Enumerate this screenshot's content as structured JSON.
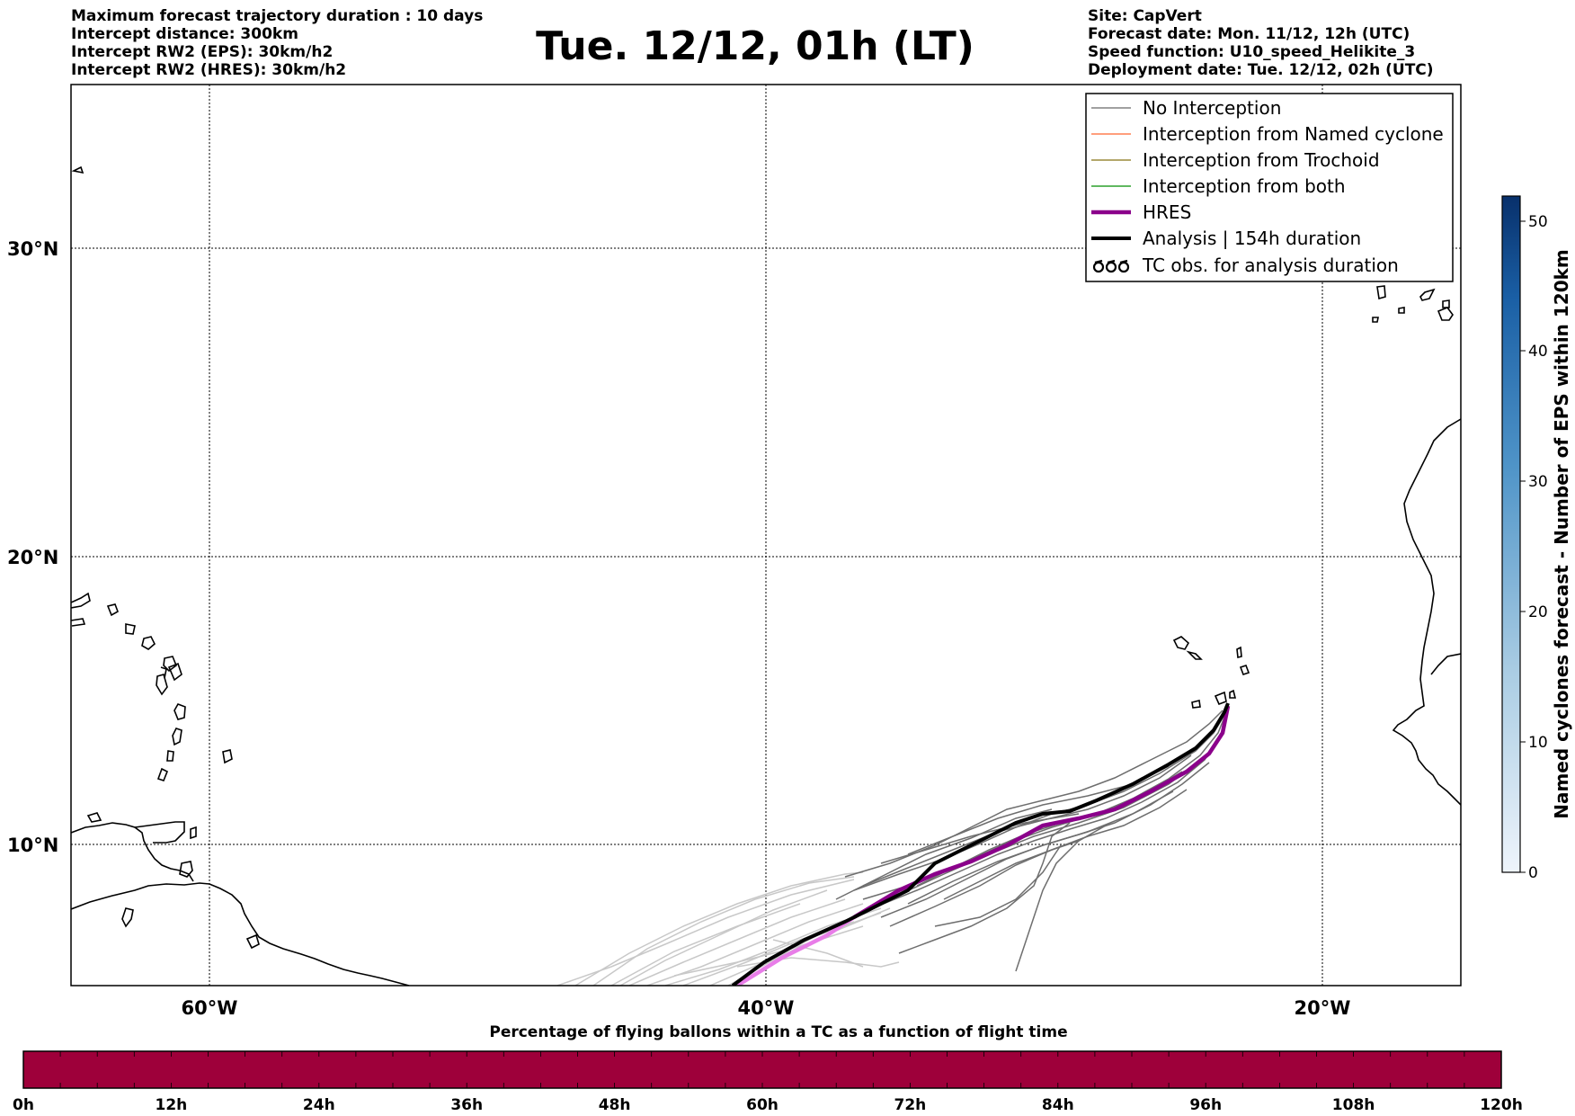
{
  "header_left": {
    "line1": "Maximum forecast trajectory duration : 10 days",
    "line2": "Intercept distance: 300km",
    "line3": "Intercept RW2 (EPS):  30km/h2",
    "line4": "Intercept RW2 (HRES): 30km/h2"
  },
  "title": "Tue. 12/12, 01h (LT)",
  "header_right": {
    "line1": "Site: CapVert",
    "line2": "Forecast date: Mon. 11/12, 12h (UTC)",
    "line3": "Speed function: U10_speed_Helikite_3",
    "line4": "Deployment date: Tue. 12/12, 02h (UTC)"
  },
  "map": {
    "lat_labels": [
      "30°N",
      "20°N",
      "10°N"
    ],
    "lon_labels": [
      "60°W",
      "40°W",
      "20°W"
    ]
  },
  "legend": {
    "items": [
      {
        "label": "No Interception",
        "color": "#808080"
      },
      {
        "label": "Interception from Named cyclone",
        "color": "#ff7f50"
      },
      {
        "label": "Interception from Trochoid",
        "color": "#9c8a3a"
      },
      {
        "label": "Interception from both",
        "color": "#2ca02c"
      },
      {
        "label": "HRES",
        "color": "#8b008b"
      },
      {
        "label": "Analysis | 154h duration",
        "color": "#000000"
      },
      {
        "label": "TC obs. for analysis duration",
        "color": "#000000"
      }
    ]
  },
  "colorbar": {
    "label": "Named cyclones forecast - Number of EPS within 120km",
    "ticks": [
      "0",
      "10",
      "20",
      "30",
      "40",
      "50"
    ],
    "colors": [
      "#e6eef8",
      "#08306b"
    ]
  },
  "bottom": {
    "title": "Percentage of flying ballons within a TC as a function of flight time",
    "ticks": [
      "0h",
      "12h",
      "24h",
      "36h",
      "48h",
      "60h",
      "72h",
      "84h",
      "96h",
      "108h",
      "120h"
    ],
    "bar_color": "#9e003a"
  }
}
